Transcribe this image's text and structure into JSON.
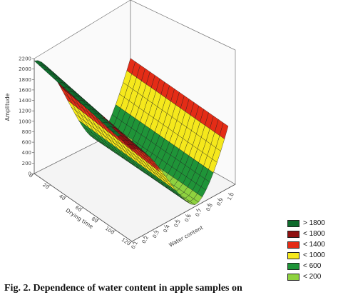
{
  "chart_data": {
    "type": "surface",
    "ylabel": "Amplitude",
    "xlabel_depth": "Drying time",
    "xlabel_width": "Water content",
    "z_ticks": [
      "2200",
      "2000",
      "1800",
      "1600",
      "1400",
      "1200",
      "1000",
      "800",
      "600",
      "400",
      "200",
      "0"
    ],
    "drying_time_ticks": [
      "0",
      "20",
      "40",
      "60",
      "80",
      "100",
      "120"
    ],
    "water_content_ticks": [
      "0.1",
      "0.2",
      "0.3",
      "0.4",
      "0.5",
      "0.6",
      "0.7",
      "0.8",
      "0.9",
      "1.0"
    ],
    "legend": [
      {
        "label": "> 1800",
        "color": "#0e6b2c"
      },
      {
        "label": "< 1800",
        "color": "#8e1010"
      },
      {
        "label": "< 1400",
        "color": "#e42c16"
      },
      {
        "label": "< 1000",
        "color": "#f5e81c"
      },
      {
        "label": "< 600",
        "color": "#1f9438"
      },
      {
        "label": "< 200",
        "color": "#8ed23f"
      }
    ]
  },
  "caption": "Fig. 2. Dependence of water content in apple samples on"
}
